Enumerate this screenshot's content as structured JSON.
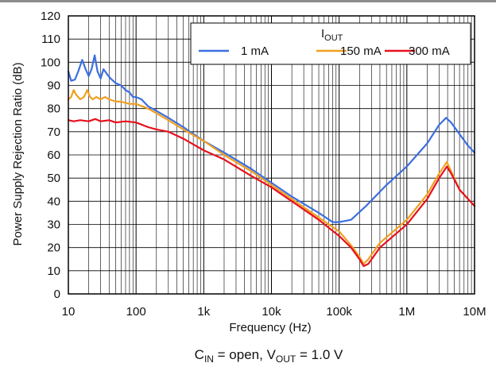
{
  "chart_data": {
    "type": "line",
    "xscale": "log",
    "xlim": [
      10,
      10000000
    ],
    "ylim": [
      0,
      120
    ],
    "xlabel": "Frequency (Hz)",
    "ylabel": "Power Supply Rejection Ratio (dB)",
    "x_tick_labels": [
      "10",
      "100",
      "1k",
      "10k",
      "100k",
      "1M",
      "10M"
    ],
    "y_tick_labels": [
      "0",
      "10",
      "20",
      "30",
      "40",
      "50",
      "60",
      "70",
      "80",
      "90",
      "100",
      "110",
      "120"
    ],
    "grid": true,
    "legend": {
      "title_main": "I",
      "title_sub": "OUT",
      "placement": "top-right"
    },
    "caption": {
      "p1": "C",
      "s1": "IN",
      "p2": " = open, V",
      "s2": "OUT",
      "p3": " = 1.0 V"
    },
    "series": [
      {
        "name": "1 mA",
        "color": "#3c6fe0",
        "points": [
          [
            10,
            96
          ],
          [
            11,
            92
          ],
          [
            12.5,
            92.5
          ],
          [
            14,
            96
          ],
          [
            16,
            101
          ],
          [
            18,
            97
          ],
          [
            20,
            94
          ],
          [
            22,
            97
          ],
          [
            24.5,
            103
          ],
          [
            27,
            96
          ],
          [
            30,
            93
          ],
          [
            33,
            97
          ],
          [
            37,
            95
          ],
          [
            42,
            93
          ],
          [
            50,
            91
          ],
          [
            60,
            90
          ],
          [
            70,
            88
          ],
          [
            80,
            87
          ],
          [
            90,
            85
          ],
          [
            100,
            85
          ],
          [
            120,
            84
          ],
          [
            150,
            81
          ],
          [
            200,
            79
          ],
          [
            300,
            76
          ],
          [
            500,
            72
          ],
          [
            1000,
            66
          ],
          [
            2000,
            61
          ],
          [
            5000,
            54
          ],
          [
            10000,
            48
          ],
          [
            20000,
            42
          ],
          [
            50000,
            35
          ],
          [
            80000,
            31
          ],
          [
            100000,
            31
          ],
          [
            150000,
            32
          ],
          [
            250000,
            38
          ],
          [
            500000,
            47
          ],
          [
            1000000,
            55
          ],
          [
            2000000,
            65
          ],
          [
            3000000,
            73
          ],
          [
            3800000,
            76
          ],
          [
            4500000,
            74
          ],
          [
            6000000,
            69
          ],
          [
            8000000,
            64
          ],
          [
            10000000,
            61
          ]
        ]
      },
      {
        "name": "150 mA",
        "color": "#f0a020",
        "points": [
          [
            10,
            84
          ],
          [
            11,
            85
          ],
          [
            12,
            88
          ],
          [
            13,
            86
          ],
          [
            15,
            84
          ],
          [
            17,
            85
          ],
          [
            19,
            88
          ],
          [
            21,
            85
          ],
          [
            23,
            84
          ],
          [
            26,
            85
          ],
          [
            30,
            84
          ],
          [
            35,
            85
          ],
          [
            40,
            84
          ],
          [
            50,
            83
          ],
          [
            60,
            83
          ],
          [
            80,
            82
          ],
          [
            100,
            82
          ],
          [
            150,
            80
          ],
          [
            200,
            78
          ],
          [
            300,
            75
          ],
          [
            500,
            71
          ],
          [
            1000,
            66
          ],
          [
            2000,
            60
          ],
          [
            5000,
            53
          ],
          [
            10000,
            47
          ],
          [
            20000,
            41
          ],
          [
            50000,
            33
          ],
          [
            100000,
            27
          ],
          [
            150000,
            21
          ],
          [
            200000,
            16
          ],
          [
            230000,
            13
          ],
          [
            270000,
            15
          ],
          [
            400000,
            22
          ],
          [
            1000000,
            32
          ],
          [
            2000000,
            43
          ],
          [
            3000000,
            52
          ],
          [
            3900000,
            57
          ],
          [
            4500000,
            53
          ],
          [
            6000000,
            45
          ],
          [
            8000000,
            41
          ],
          [
            10000000,
            38
          ]
        ]
      },
      {
        "name": "300 mA",
        "color": "#e8101c",
        "points": [
          [
            10,
            75
          ],
          [
            12,
            74.5
          ],
          [
            15,
            75
          ],
          [
            20,
            74.5
          ],
          [
            25,
            75.5
          ],
          [
            30,
            74.5
          ],
          [
            40,
            75
          ],
          [
            50,
            74
          ],
          [
            70,
            74.5
          ],
          [
            100,
            74
          ],
          [
            150,
            72
          ],
          [
            200,
            71
          ],
          [
            300,
            70
          ],
          [
            500,
            67
          ],
          [
            1000,
            62
          ],
          [
            2000,
            58
          ],
          [
            5000,
            51
          ],
          [
            10000,
            46
          ],
          [
            20000,
            40
          ],
          [
            50000,
            32
          ],
          [
            100000,
            25
          ],
          [
            150000,
            20
          ],
          [
            200000,
            15
          ],
          [
            230000,
            12
          ],
          [
            270000,
            13
          ],
          [
            400000,
            20
          ],
          [
            1000000,
            30
          ],
          [
            2000000,
            41
          ],
          [
            3000000,
            50
          ],
          [
            3900000,
            55
          ],
          [
            4500000,
            52
          ],
          [
            6000000,
            45
          ],
          [
            8000000,
            41
          ],
          [
            10000000,
            38
          ]
        ]
      }
    ]
  }
}
